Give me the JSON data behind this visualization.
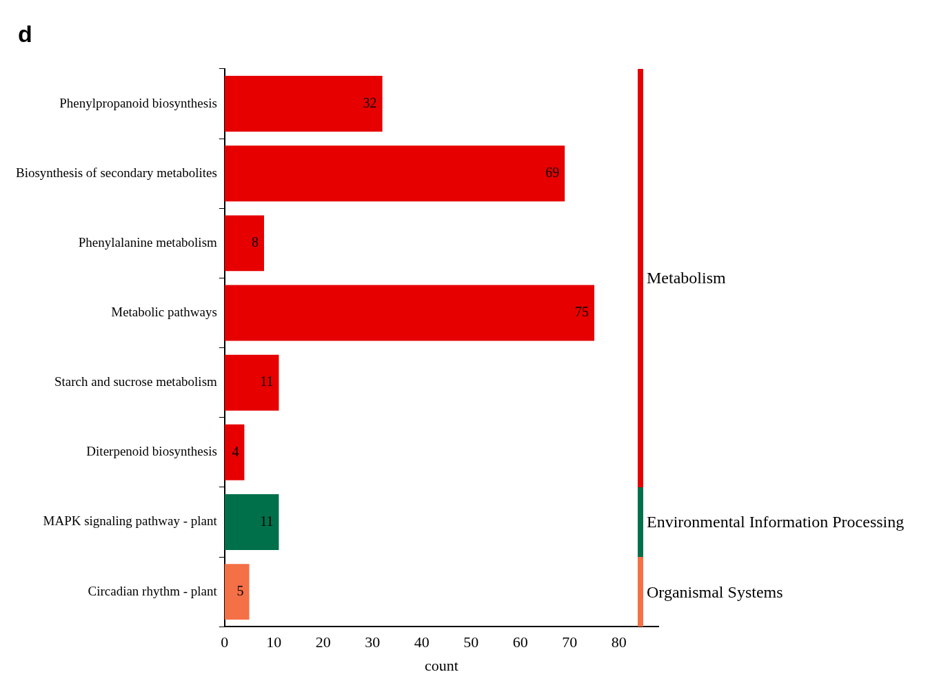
{
  "chart_data": {
    "type": "bar",
    "orientation": "horizontal",
    "annotations": [
      "d",
      "Metabolism",
      "Environmental Information Processing",
      "Organismal Systems"
    ],
    "categories": [
      "Phenylpropanoid biosynthesis",
      "Biosynthesis of secondary metabolites",
      "Phenylalanine metabolism",
      "Metabolic pathways",
      "Starch and sucrose metabolism",
      "Diterpenoid biosynthesis",
      "MAPK signaling pathway - plant",
      "Circadian rhythm - plant"
    ],
    "values": [
      32,
      69,
      8,
      75,
      11,
      4,
      11,
      5
    ],
    "colors": [
      "#e60000",
      "#e60000",
      "#e60000",
      "#e60000",
      "#e60000",
      "#e60000",
      "#00704a",
      "#f47046"
    ],
    "xlabel": "count",
    "xlim": [
      0,
      88
    ],
    "xticks": [
      0,
      10,
      20,
      30,
      40,
      50,
      60,
      70,
      80
    ],
    "data_labels": true,
    "grid": false,
    "legend": false
  }
}
